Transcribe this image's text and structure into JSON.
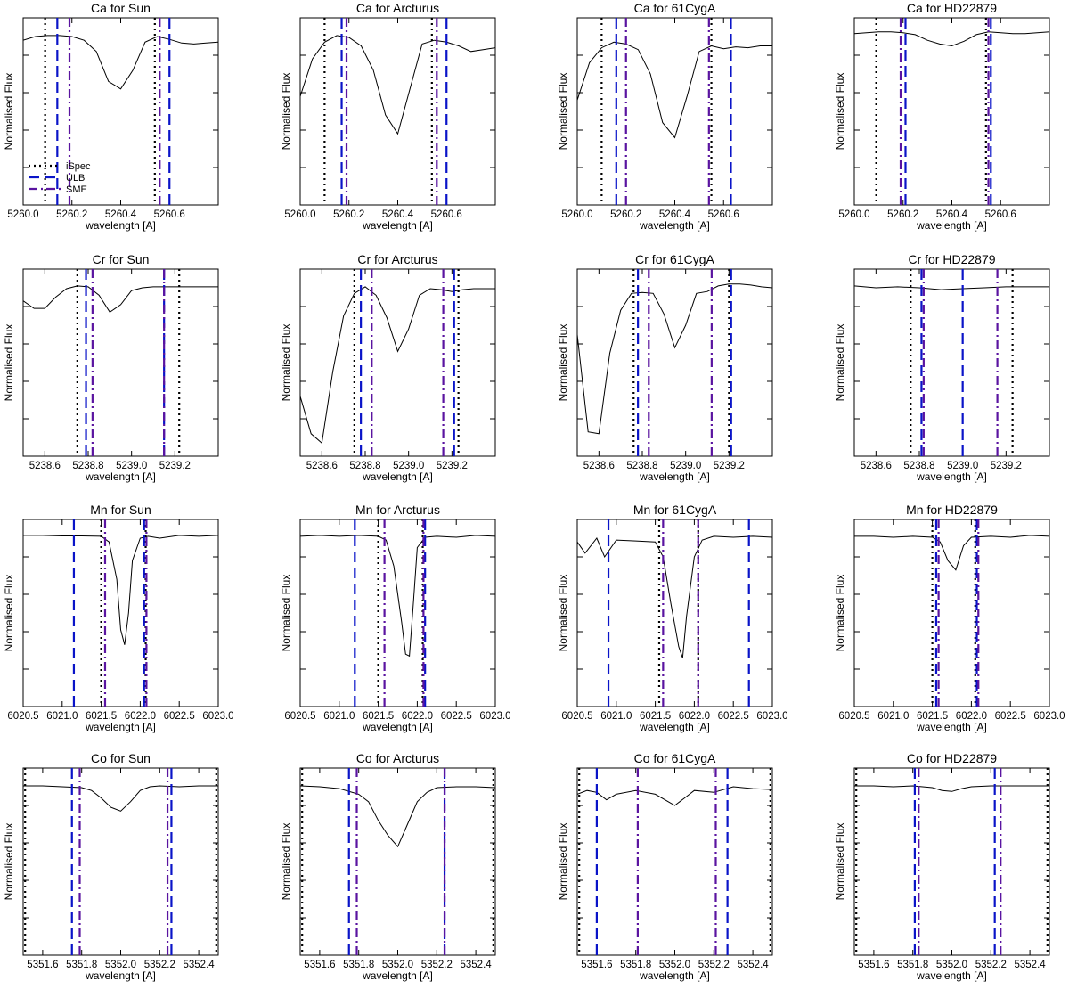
{
  "figure": {
    "xlabel": "wavelength [A]",
    "ylabel": "Normalised Flux"
  },
  "legend": [
    {
      "name": "iSpec",
      "color": "#000000",
      "dash": "2,4"
    },
    {
      "name": "ULB",
      "color": "#0a14c8",
      "dash": "12,6"
    },
    {
      "name": "SME",
      "color": "#5a14a0",
      "dash": "10,4,2,4"
    }
  ],
  "chart_data": [
    {
      "type": "line",
      "title": "Ca for Sun",
      "xlim": [
        5260.0,
        5260.8
      ],
      "xticks": [
        5260.0,
        5260.2,
        5260.4,
        5260.6
      ],
      "x": [
        5260.0,
        5260.05,
        5260.1,
        5260.15,
        5260.2,
        5260.25,
        5260.3,
        5260.35,
        5260.4,
        5260.45,
        5260.5,
        5260.55,
        5260.6,
        5260.65,
        5260.7,
        5260.75,
        5260.8
      ],
      "y": [
        0.88,
        0.9,
        0.905,
        0.905,
        0.9,
        0.88,
        0.82,
        0.66,
        0.62,
        0.72,
        0.87,
        0.9,
        0.885,
        0.865,
        0.86,
        0.865,
        0.87
      ],
      "lines": {
        "iSpec": [
          5260.09,
          5260.54
        ],
        "ULB": [
          5260.14,
          5260.6
        ],
        "SME": [
          5260.19,
          5260.56
        ]
      }
    },
    {
      "type": "line",
      "title": "Ca for Arcturus",
      "xlim": [
        5260.0,
        5260.8
      ],
      "xticks": [
        5260.0,
        5260.2,
        5260.4,
        5260.6
      ],
      "x": [
        5260.0,
        5260.05,
        5260.1,
        5260.15,
        5260.2,
        5260.25,
        5260.3,
        5260.35,
        5260.4,
        5260.45,
        5260.5,
        5260.55,
        5260.6,
        5260.65,
        5260.7,
        5260.75,
        5260.8
      ],
      "y": [
        0.58,
        0.78,
        0.87,
        0.905,
        0.895,
        0.85,
        0.72,
        0.48,
        0.38,
        0.62,
        0.86,
        0.88,
        0.87,
        0.85,
        0.82,
        0.83,
        0.84
      ],
      "lines": {
        "iSpec": [
          5260.1,
          5260.54
        ],
        "ULB": [
          5260.17,
          5260.6
        ],
        "SME": [
          5260.19,
          5260.56
        ]
      }
    },
    {
      "type": "line",
      "title": "Ca for 61CygA",
      "xlim": [
        5260.0,
        5260.8
      ],
      "xticks": [
        5260.0,
        5260.2,
        5260.4,
        5260.6
      ],
      "x": [
        5260.0,
        5260.05,
        5260.1,
        5260.15,
        5260.2,
        5260.25,
        5260.3,
        5260.35,
        5260.4,
        5260.45,
        5260.5,
        5260.55,
        5260.6,
        5260.65,
        5260.7,
        5260.75,
        5260.8
      ],
      "y": [
        0.56,
        0.76,
        0.84,
        0.87,
        0.86,
        0.83,
        0.7,
        0.44,
        0.36,
        0.58,
        0.82,
        0.85,
        0.835,
        0.845,
        0.84,
        0.85,
        0.85
      ],
      "lines": {
        "iSpec": [
          5260.1,
          5260.55
        ],
        "ULB": [
          5260.16,
          5260.63
        ],
        "SME": [
          5260.2,
          5260.54
        ]
      }
    },
    {
      "type": "line",
      "title": "Ca for HD22879",
      "xlim": [
        5260.0,
        5260.8
      ],
      "xticks": [
        5260.0,
        5260.2,
        5260.4,
        5260.6
      ],
      "x": [
        5260.0,
        5260.05,
        5260.1,
        5260.15,
        5260.2,
        5260.25,
        5260.3,
        5260.35,
        5260.4,
        5260.45,
        5260.5,
        5260.55,
        5260.6,
        5260.65,
        5260.7,
        5260.75,
        5260.8
      ],
      "y": [
        0.915,
        0.92,
        0.925,
        0.925,
        0.92,
        0.91,
        0.88,
        0.86,
        0.85,
        0.875,
        0.91,
        0.925,
        0.92,
        0.915,
        0.915,
        0.92,
        0.925
      ],
      "lines": {
        "iSpec": [
          5260.09,
          5260.54
        ],
        "ULB": [
          5260.21,
          5260.56
        ],
        "SME": [
          5260.19,
          5260.55
        ]
      }
    },
    {
      "type": "line",
      "title": "Cr for Sun",
      "xlim": [
        5238.5,
        5239.4
      ],
      "xticks": [
        5238.6,
        5238.8,
        5239.0,
        5239.2
      ],
      "x": [
        5238.5,
        5238.55,
        5238.6,
        5238.65,
        5238.7,
        5238.75,
        5238.8,
        5238.85,
        5238.9,
        5238.95,
        5239.0,
        5239.05,
        5239.1,
        5239.15,
        5239.2,
        5239.25,
        5239.3,
        5239.35,
        5239.4
      ],
      "y": [
        0.83,
        0.79,
        0.79,
        0.85,
        0.895,
        0.91,
        0.905,
        0.86,
        0.77,
        0.81,
        0.885,
        0.9,
        0.905,
        0.905,
        0.905,
        0.905,
        0.905,
        0.905,
        0.905
      ],
      "lines": {
        "iSpec": [
          5238.75,
          5239.22
        ],
        "ULB": [
          5238.79,
          5239.15
        ],
        "SME": [
          5238.82,
          5239.15
        ]
      }
    },
    {
      "type": "line",
      "title": "Cr for Arcturus",
      "xlim": [
        5238.5,
        5239.4
      ],
      "xticks": [
        5238.6,
        5238.8,
        5239.0,
        5239.2
      ],
      "x": [
        5238.5,
        5238.55,
        5238.6,
        5238.65,
        5238.7,
        5238.75,
        5238.8,
        5238.85,
        5238.9,
        5238.95,
        5239.0,
        5239.05,
        5239.1,
        5239.15,
        5239.2,
        5239.25,
        5239.3,
        5239.35,
        5239.4
      ],
      "y": [
        0.32,
        0.12,
        0.07,
        0.45,
        0.75,
        0.87,
        0.905,
        0.86,
        0.74,
        0.56,
        0.68,
        0.86,
        0.895,
        0.89,
        0.88,
        0.89,
        0.895,
        0.895,
        0.895
      ],
      "lines": {
        "iSpec": [
          5238.75,
          5239.23
        ],
        "ULB": [
          5238.78,
          5239.21
        ],
        "SME": [
          5238.83,
          5239.16
        ]
      }
    },
    {
      "type": "line",
      "title": "Cr for 61CygA",
      "xlim": [
        5238.5,
        5239.4
      ],
      "xticks": [
        5238.6,
        5238.8,
        5239.0,
        5239.2
      ],
      "x": [
        5238.5,
        5238.55,
        5238.6,
        5238.65,
        5238.7,
        5238.75,
        5238.8,
        5238.85,
        5238.9,
        5238.95,
        5239.0,
        5239.05,
        5239.1,
        5239.15,
        5239.2,
        5239.25,
        5239.3,
        5239.35,
        5239.4
      ],
      "y": [
        0.65,
        0.13,
        0.12,
        0.55,
        0.78,
        0.87,
        0.875,
        0.87,
        0.76,
        0.58,
        0.7,
        0.87,
        0.88,
        0.91,
        0.92,
        0.92,
        0.915,
        0.905,
        0.9
      ],
      "lines": {
        "iSpec": [
          5238.76,
          5239.2
        ],
        "ULB": [
          5238.78,
          5239.21
        ],
        "SME": [
          5238.83,
          5239.12
        ]
      }
    },
    {
      "type": "line",
      "title": "Cr for HD22879",
      "xlim": [
        5238.5,
        5239.4
      ],
      "xticks": [
        5238.6,
        5238.8,
        5239.0,
        5239.2
      ],
      "x": [
        5238.5,
        5238.6,
        5238.7,
        5238.8,
        5238.9,
        5239.0,
        5239.1,
        5239.2,
        5239.3,
        5239.4
      ],
      "y": [
        0.91,
        0.9,
        0.905,
        0.9,
        0.89,
        0.895,
        0.9,
        0.905,
        0.905,
        0.905
      ],
      "lines": {
        "iSpec": [
          5238.76,
          5239.23
        ],
        "ULB": [
          5238.81,
          5239.0
        ],
        "SME": [
          5238.82,
          5239.16
        ]
      }
    },
    {
      "type": "line",
      "title": "Mn for Sun",
      "xlim": [
        6020.5,
        6023.0
      ],
      "xticks": [
        6020.5,
        6021.0,
        6021.5,
        6022.0,
        6022.5,
        6023.0
      ],
      "x": [
        6020.5,
        6020.75,
        6021.0,
        6021.25,
        6021.5,
        6021.6,
        6021.7,
        6021.75,
        6021.8,
        6021.85,
        6021.9,
        6022.0,
        6022.1,
        6022.25,
        6022.5,
        6022.75,
        6023.0
      ],
      "y": [
        0.915,
        0.915,
        0.912,
        0.912,
        0.91,
        0.88,
        0.68,
        0.41,
        0.33,
        0.5,
        0.78,
        0.9,
        0.91,
        0.9,
        0.915,
        0.91,
        0.915
      ],
      "lines": {
        "iSpec": [
          6021.5,
          6022.07
        ],
        "ULB": [
          6021.15,
          6022.05
        ],
        "SME": [
          6021.55,
          6022.08
        ]
      }
    },
    {
      "type": "line",
      "title": "Mn for Arcturus",
      "xlim": [
        6020.5,
        6023.0
      ],
      "xticks": [
        6020.5,
        6021.0,
        6021.5,
        6022.0,
        6022.5,
        6023.0
      ],
      "x": [
        6020.5,
        6020.75,
        6021.0,
        6021.25,
        6021.5,
        6021.6,
        6021.7,
        6021.8,
        6021.85,
        6021.9,
        6021.95,
        6022.0,
        6022.1,
        6022.25,
        6022.5,
        6022.75,
        6023.0
      ],
      "y": [
        0.91,
        0.915,
        0.91,
        0.915,
        0.91,
        0.89,
        0.75,
        0.45,
        0.28,
        0.27,
        0.55,
        0.85,
        0.905,
        0.91,
        0.905,
        0.915,
        0.91
      ],
      "lines": {
        "iSpec": [
          6021.5,
          6022.07
        ],
        "ULB": [
          6021.2,
          6022.1
        ],
        "SME": [
          6021.58,
          6022.08
        ]
      }
    },
    {
      "type": "line",
      "title": "Mn for 61CygA",
      "xlim": [
        6020.5,
        6023.0
      ],
      "xticks": [
        6020.5,
        6021.0,
        6021.5,
        6022.0,
        6022.5,
        6023.0
      ],
      "x": [
        6020.5,
        6020.6,
        6020.75,
        6020.85,
        6021.0,
        6021.25,
        6021.5,
        6021.6,
        6021.7,
        6021.8,
        6021.85,
        6021.9,
        6022.0,
        6022.1,
        6022.25,
        6022.5,
        6022.75,
        6023.0
      ],
      "y": [
        0.88,
        0.82,
        0.9,
        0.8,
        0.89,
        0.885,
        0.88,
        0.8,
        0.55,
        0.32,
        0.26,
        0.48,
        0.8,
        0.89,
        0.91,
        0.905,
        0.91,
        0.905
      ],
      "lines": {
        "iSpec": [
          6021.55,
          6022.05
        ],
        "ULB": [
          6020.9,
          6022.7
        ],
        "SME": [
          6021.6,
          6022.05
        ]
      }
    },
    {
      "type": "line",
      "title": "Mn for HD22879",
      "xlim": [
        6020.5,
        6023.0
      ],
      "xticks": [
        6020.5,
        6021.0,
        6021.5,
        6022.0,
        6022.5,
        6023.0
      ],
      "x": [
        6020.5,
        6020.75,
        6021.0,
        6021.25,
        6021.5,
        6021.6,
        6021.7,
        6021.8,
        6021.9,
        6022.0,
        6022.25,
        6022.5,
        6022.75,
        6023.0
      ],
      "y": [
        0.91,
        0.91,
        0.905,
        0.91,
        0.905,
        0.88,
        0.78,
        0.73,
        0.86,
        0.905,
        0.91,
        0.905,
        0.915,
        0.91
      ],
      "lines": {
        "iSpec": [
          6021.5,
          6022.05
        ],
        "ULB": [
          6021.55,
          6022.07
        ],
        "SME": [
          6021.58,
          6022.09
        ]
      }
    },
    {
      "type": "line",
      "title": "Co for Sun",
      "xlim": [
        5351.5,
        5352.5
      ],
      "xticks": [
        5351.6,
        5351.8,
        5352.0,
        5352.2,
        5352.4
      ],
      "x": [
        5351.5,
        5351.6,
        5351.7,
        5351.8,
        5351.85,
        5351.9,
        5351.95,
        5352.0,
        5352.05,
        5352.1,
        5352.15,
        5352.2,
        5352.3,
        5352.4,
        5352.5
      ],
      "y": [
        0.905,
        0.905,
        0.9,
        0.895,
        0.88,
        0.84,
        0.79,
        0.77,
        0.82,
        0.88,
        0.9,
        0.905,
        0.9,
        0.905,
        0.905
      ],
      "lines": {
        "iSpec": [
          5351.51,
          5352.49
        ],
        "ULB": [
          5351.75,
          5352.26
        ],
        "SME": [
          5351.79,
          5352.24
        ]
      }
    },
    {
      "type": "line",
      "title": "Co for Arcturus",
      "xlim": [
        5351.5,
        5352.5
      ],
      "xticks": [
        5351.6,
        5351.8,
        5352.0,
        5352.2,
        5352.4
      ],
      "x": [
        5351.5,
        5351.6,
        5351.7,
        5351.8,
        5351.85,
        5351.9,
        5351.95,
        5352.0,
        5352.05,
        5352.1,
        5352.15,
        5352.2,
        5352.3,
        5352.4,
        5352.5
      ],
      "y": [
        0.905,
        0.9,
        0.89,
        0.86,
        0.82,
        0.72,
        0.64,
        0.58,
        0.7,
        0.82,
        0.87,
        0.895,
        0.9,
        0.9,
        0.895
      ],
      "lines": {
        "iSpec": [
          5351.51,
          5352.49
        ],
        "ULB": [
          5351.75,
          5352.24
        ],
        "SME": [
          5351.79,
          5352.24
        ]
      }
    },
    {
      "type": "line",
      "title": "Co for 61CygA",
      "xlim": [
        5351.5,
        5352.5
      ],
      "xticks": [
        5351.6,
        5351.8,
        5352.0,
        5352.2,
        5352.4
      ],
      "x": [
        5351.5,
        5351.55,
        5351.6,
        5351.65,
        5351.7,
        5351.8,
        5351.9,
        5352.0,
        5352.05,
        5352.1,
        5352.2,
        5352.3,
        5352.4,
        5352.5
      ],
      "y": [
        0.86,
        0.88,
        0.87,
        0.83,
        0.86,
        0.88,
        0.86,
        0.8,
        0.84,
        0.88,
        0.87,
        0.9,
        0.89,
        0.885
      ],
      "lines": {
        "iSpec": [
          5351.51,
          5352.49
        ],
        "ULB": [
          5351.6,
          5352.27
        ],
        "SME": [
          5351.81,
          5352.21
        ]
      }
    },
    {
      "type": "line",
      "title": "Co for HD22879",
      "xlim": [
        5351.5,
        5352.5
      ],
      "xticks": [
        5351.6,
        5351.8,
        5352.0,
        5352.2,
        5352.4
      ],
      "x": [
        5351.5,
        5351.6,
        5351.7,
        5351.8,
        5351.9,
        5351.95,
        5352.0,
        5352.05,
        5352.1,
        5352.2,
        5352.3,
        5352.4,
        5352.5
      ],
      "y": [
        0.905,
        0.905,
        0.9,
        0.905,
        0.895,
        0.88,
        0.875,
        0.89,
        0.9,
        0.905,
        0.905,
        0.905,
        0.905
      ],
      "lines": {
        "iSpec": [
          5351.51,
          5352.49
        ],
        "ULB": [
          5351.81,
          5352.22
        ],
        "SME": [
          5351.83,
          5352.25
        ]
      }
    }
  ]
}
